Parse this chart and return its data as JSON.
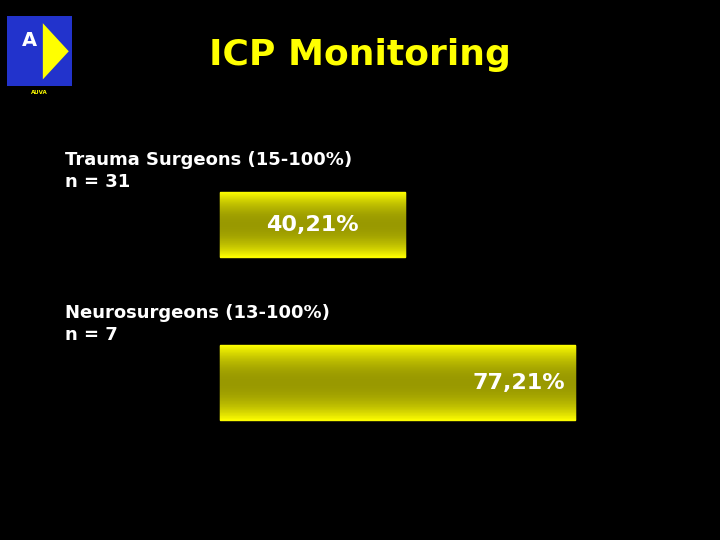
{
  "title": "ICP Monitoring",
  "title_color": "#FFFF00",
  "title_fontsize": 26,
  "background_color": "#000000",
  "bar1_label_line1": "Trauma Surgeons (15-100%)",
  "bar1_label_line2": "n = 31",
  "bar1_value_text": "40,21%",
  "bar1_value": 40.21,
  "bar2_label_line1": "Neurosurgeons (13-100%)",
  "bar2_label_line2": "n = 7",
  "bar2_value_text": "77,21%",
  "bar2_value": 77.21,
  "bar_color": "#DDDD00",
  "bar_text_color": "#FFFFFF",
  "label_color": "#FFFFFF",
  "label_fontsize": 13,
  "value_fontsize": 16,
  "max_value": 100
}
